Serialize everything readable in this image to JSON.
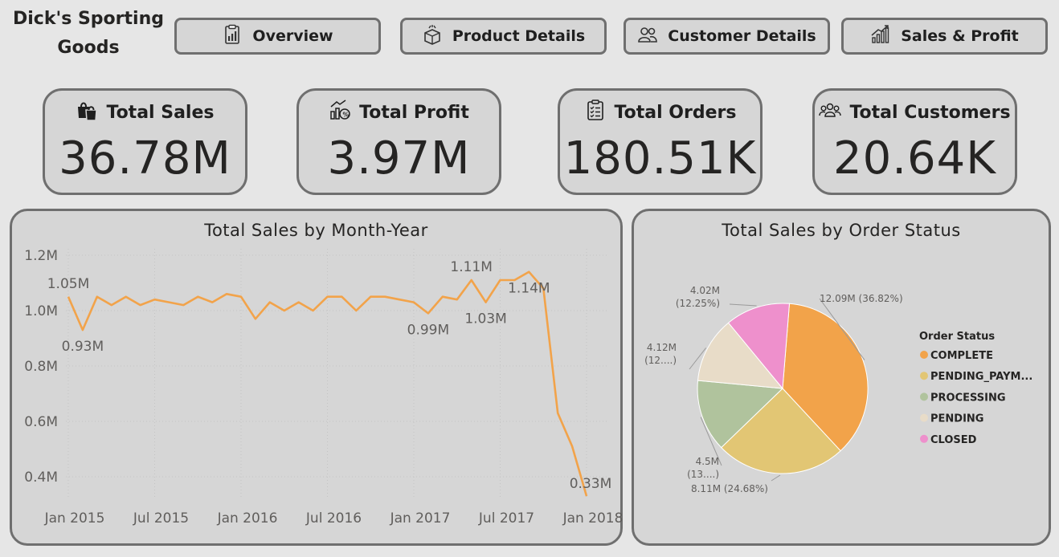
{
  "brand": {
    "title": "Dick's Sporting Goods"
  },
  "nav": {
    "overview": {
      "label": "Overview",
      "icon": "report-icon"
    },
    "product": {
      "label": "Product Details",
      "icon": "box-icon"
    },
    "customer": {
      "label": "Customer Details",
      "icon": "people-icon"
    },
    "sales": {
      "label": "Sales & Profit",
      "icon": "bar-growth-icon"
    }
  },
  "kpis": {
    "sales": {
      "label": "Total Sales",
      "value": "36.78M",
      "icon": "shopping-bags-icon"
    },
    "profit": {
      "label": "Total Profit",
      "value": "3.97M",
      "icon": "money-growth-icon"
    },
    "orders": {
      "label": "Total Orders",
      "value": "180.51K",
      "icon": "clipboard-icon"
    },
    "customers": {
      "label": "Total Customers",
      "value": "20.64K",
      "icon": "group-icon"
    }
  },
  "colors": {
    "line": "#F2A34A",
    "complete": "#F2A34A",
    "pending_payment": "#E2C674",
    "processing": "#B0C39D",
    "pending": "#E8DCC8",
    "closed": "#EE90CC"
  },
  "chart_data": [
    {
      "type": "line",
      "title": "Total Sales by Month-Year",
      "xlabel": "",
      "ylabel": "",
      "x_ticks": [
        "Jan 2015",
        "Jul 2015",
        "Jan 2016",
        "Jul 2016",
        "Jan 2017",
        "Jul 2017",
        "Jan 2018"
      ],
      "y_ticks": [
        "1.2M",
        "1.0M",
        "0.8M",
        "0.6M",
        "0.4M"
      ],
      "y_tick_values": [
        1.2,
        1.0,
        0.8,
        0.6,
        0.4
      ],
      "ylim": [
        0.33,
        1.2
      ],
      "grid": true,
      "x": [
        "2015-01",
        "2015-02",
        "2015-03",
        "2015-04",
        "2015-05",
        "2015-06",
        "2015-07",
        "2015-08",
        "2015-09",
        "2015-10",
        "2015-11",
        "2015-12",
        "2016-01",
        "2016-02",
        "2016-03",
        "2016-04",
        "2016-05",
        "2016-06",
        "2016-07",
        "2016-08",
        "2016-09",
        "2016-10",
        "2016-11",
        "2016-12",
        "2017-01",
        "2017-02",
        "2017-03",
        "2017-04",
        "2017-05",
        "2017-06",
        "2017-07",
        "2017-08",
        "2017-09",
        "2017-10",
        "2017-11",
        "2017-12",
        "2018-01"
      ],
      "values": [
        1.05,
        0.93,
        1.05,
        1.02,
        1.05,
        1.02,
        1.04,
        1.03,
        1.02,
        1.05,
        1.03,
        1.06,
        1.05,
        0.97,
        1.03,
        1.0,
        1.03,
        1.0,
        1.05,
        1.05,
        1.0,
        1.05,
        1.05,
        1.04,
        1.03,
        0.99,
        1.05,
        1.04,
        1.11,
        1.03,
        1.11,
        1.11,
        1.14,
        1.08,
        0.63,
        0.51,
        0.33
      ],
      "data_labels": [
        {
          "index": 0,
          "text": "1.05M",
          "pos": "above"
        },
        {
          "index": 1,
          "text": "0.93M",
          "pos": "below"
        },
        {
          "index": 25,
          "text": "0.99M",
          "pos": "below"
        },
        {
          "index": 28,
          "text": "1.11M",
          "pos": "above"
        },
        {
          "index": 29,
          "text": "1.03M",
          "pos": "below"
        },
        {
          "index": 32,
          "text": "1.14M",
          "pos": "below"
        },
        {
          "index": 36,
          "text": "0.33M",
          "pos": "left"
        }
      ]
    },
    {
      "type": "pie",
      "title": "Total Sales by Order Status",
      "legend_title": "Order Status",
      "legend_position": "right",
      "slices": [
        {
          "name": "COMPLETE",
          "legend": "COMPLETE",
          "value": 12.09,
          "label": "12.09M (36.82%)",
          "color": "#F2A34A"
        },
        {
          "name": "PENDING_PAYMENT",
          "legend": "PENDING_PAYM...",
          "value": 8.11,
          "label": "8.11M (24.68%)",
          "color": "#E2C674"
        },
        {
          "name": "PROCESSING",
          "legend": "PROCESSING",
          "value": 4.5,
          "label": "4.5M (13....)",
          "color": "#B0C39D"
        },
        {
          "name": "PENDING",
          "legend": "PENDING",
          "value": 4.12,
          "label": "4.12M (12....)",
          "color": "#E8DCC8"
        },
        {
          "name": "CLOSED",
          "legend": "CLOSED",
          "value": 4.02,
          "label": "4.02M (12.25%)",
          "color": "#EE90CC"
        }
      ]
    }
  ]
}
